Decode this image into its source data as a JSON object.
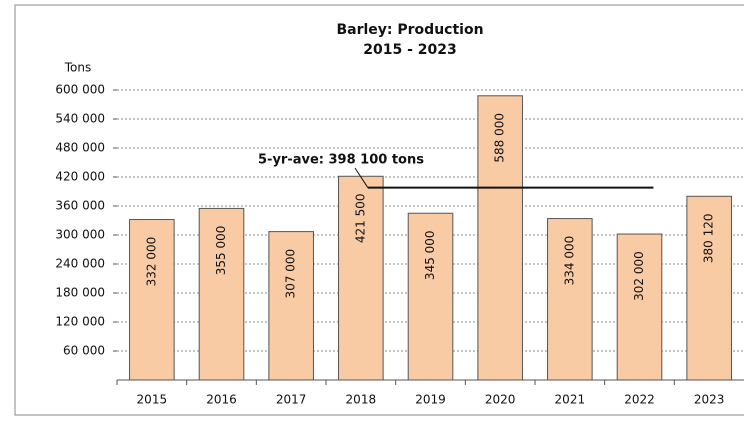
{
  "chart_data": {
    "type": "bar",
    "title": "Barley: Production",
    "subtitle": "2015 - 2023",
    "y_label": "Tons",
    "categories": [
      "2015",
      "2016",
      "2017",
      "2018",
      "2019",
      "2020",
      "2021",
      "2022",
      "2023"
    ],
    "values": [
      332000,
      355000,
      307000,
      421500,
      345000,
      588000,
      334000,
      302000,
      380120
    ],
    "value_labels": [
      "332 000",
      "355 000",
      "307 000",
      "421 500",
      "345 000",
      "588 000",
      "334 000",
      "302 000",
      "380 120"
    ],
    "color": "#f9cba5",
    "ylim": [
      0,
      600000
    ],
    "yticks": [
      {
        "value": 60000,
        "label": "60 000"
      },
      {
        "value": 120000,
        "label": "120 000"
      },
      {
        "value": 180000,
        "label": "180 000"
      },
      {
        "value": 240000,
        "label": "240 000"
      },
      {
        "value": 300000,
        "label": "300 000"
      },
      {
        "value": 360000,
        "label": "360 000"
      },
      {
        "value": 420000,
        "label": "420 000"
      },
      {
        "value": 480000,
        "label": "480 000"
      },
      {
        "value": 540000,
        "label": "540 000"
      },
      {
        "value": 600000,
        "label": "600 000"
      }
    ],
    "grid": true,
    "average": {
      "value": 398100,
      "label": "5-yr-ave: 398 100 tons"
    }
  }
}
